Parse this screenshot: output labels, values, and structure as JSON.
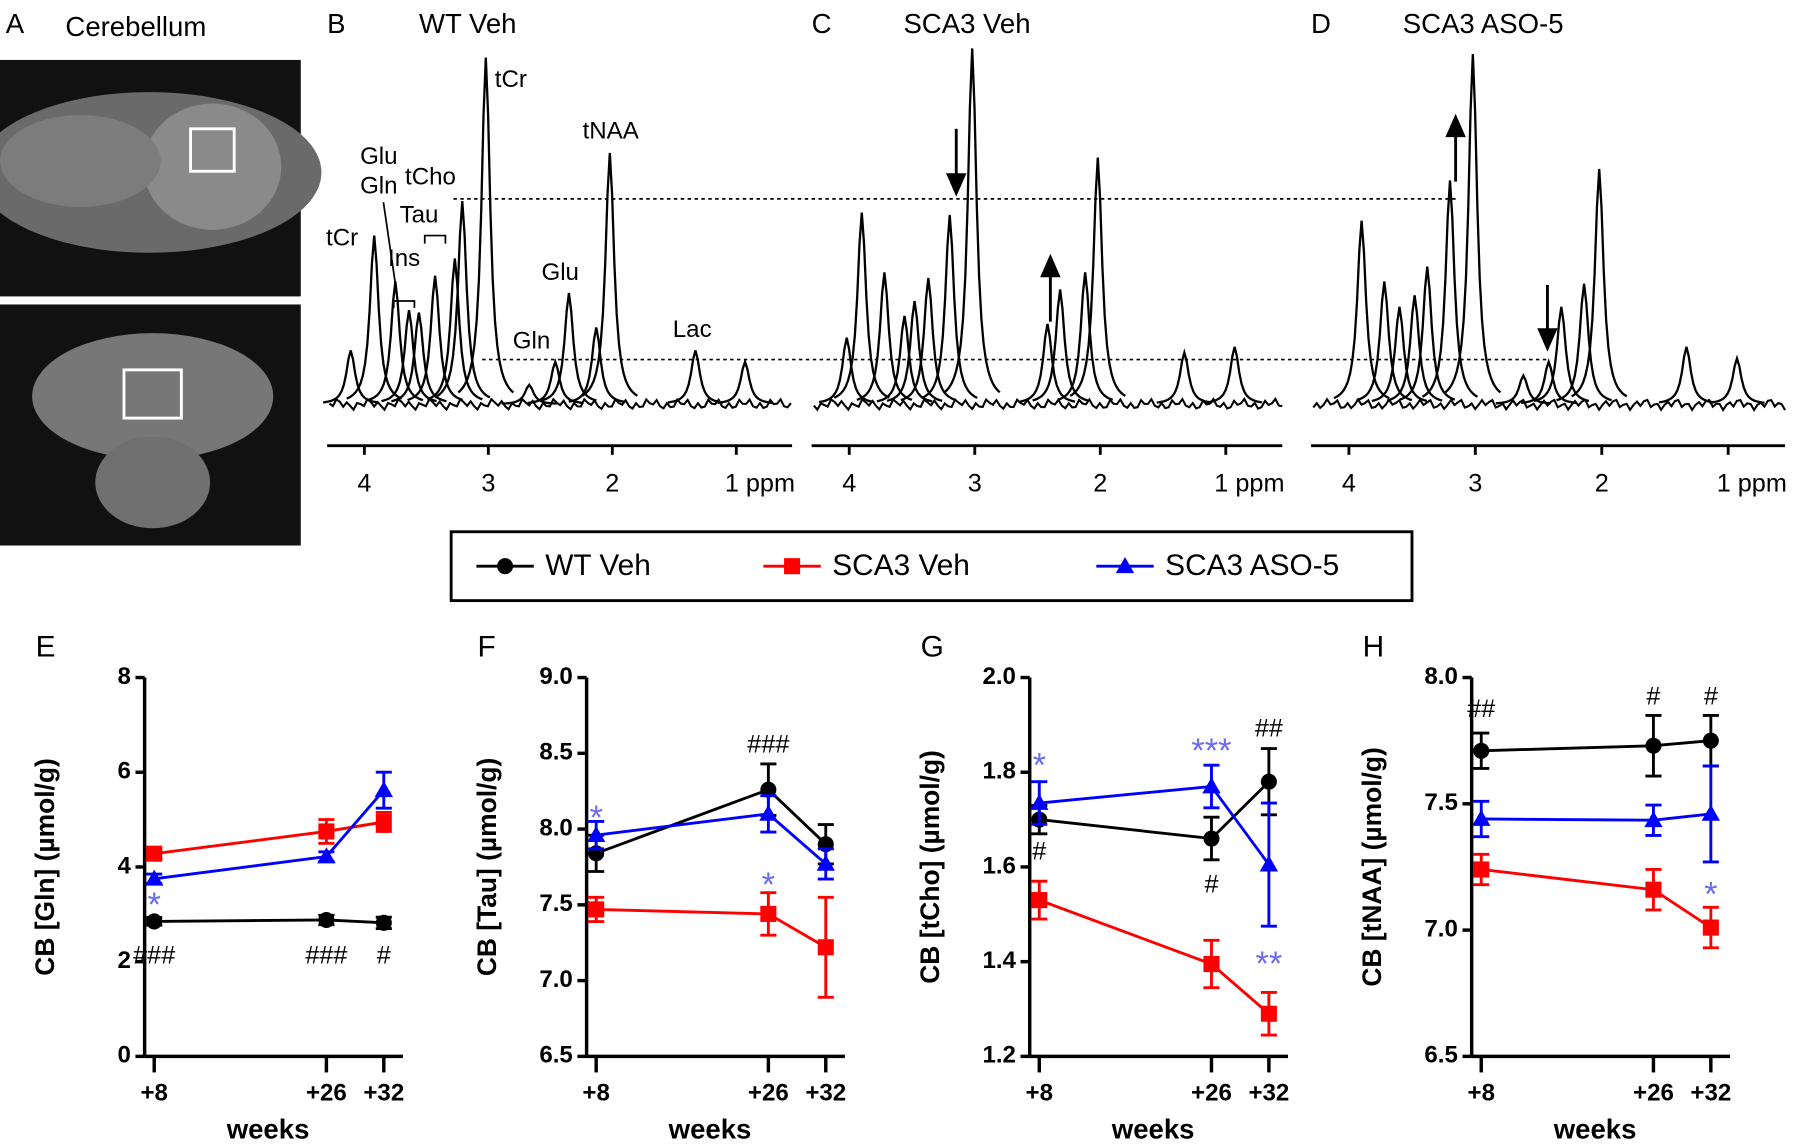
{
  "image_panel": {
    "label": "A",
    "title": "Cerebellum"
  },
  "chart_data": [
    {
      "type": "spectrum",
      "label": "B",
      "title": "WT Veh",
      "color": "#000000",
      "x": [
        4.11,
        3.92,
        3.75,
        3.64,
        3.56,
        3.43,
        3.27,
        3.21,
        3.02,
        2.67,
        2.46,
        2.35,
        2.13,
        2.02,
        1.33,
        0.93
      ],
      "values": [
        4.7,
        14.7,
        10.7,
        8.2,
        8.0,
        11.2,
        12.7,
        17.7,
        30.2,
        1.7,
        3.7,
        9.7,
        6.7,
        21.9,
        4.7,
        3.7
      ],
      "xlim": [
        4.3,
        0.55
      ],
      "xticks": [
        4,
        3,
        2,
        {
          "value": 1,
          "label": "1 ppm"
        }
      ],
      "annotations": [
        "tCr",
        "tNAA",
        "Glu",
        "Gln",
        "tCho",
        "Tau",
        "Ins",
        "Glu",
        "Gln",
        "Lac",
        "tCr"
      ]
    },
    {
      "type": "spectrum",
      "label": "C",
      "title": "SCA3 Veh",
      "color": "#000000",
      "x": [
        4.02,
        3.9,
        3.72,
        3.56,
        3.48,
        3.37,
        3.2,
        3.02,
        2.42,
        2.32,
        2.12,
        2.02,
        1.33,
        0.93
      ],
      "values": [
        5.8,
        16.7,
        11.5,
        7.7,
        9.0,
        11.0,
        16.5,
        31.0,
        7.0,
        10.0,
        11.5,
        21.5,
        4.5,
        5.0
      ],
      "xlim": [
        4.3,
        0.55
      ],
      "xticks": [
        4,
        3,
        2,
        {
          "value": 1,
          "label": "1 ppm"
        }
      ]
    },
    {
      "type": "spectrum",
      "label": "D",
      "title": "SCA3 ASO-5",
      "color": "#000000",
      "x": [
        3.9,
        3.72,
        3.6,
        3.48,
        3.38,
        3.2,
        3.02,
        2.62,
        2.42,
        2.32,
        2.14,
        2.02,
        1.33,
        0.93
      ],
      "values": [
        16.0,
        10.7,
        8.5,
        9.5,
        12.0,
        19.5,
        30.5,
        2.5,
        3.7,
        8.5,
        10.5,
        20.5,
        5.0,
        4.0
      ],
      "xlim": [
        4.3,
        0.55
      ],
      "xticks": [
        4,
        3,
        2,
        {
          "value": 1,
          "label": "1 ppm"
        }
      ]
    },
    {
      "type": "line",
      "label": "E",
      "ylabel": "CB [Gln] (µmol/g)",
      "xlabel": "weeks",
      "x": [
        8,
        26,
        32
      ],
      "xlim": [
        7,
        34
      ],
      "xticks": [
        {
          "value": 8,
          "label": "+8"
        },
        {
          "value": 26,
          "label": "+26"
        },
        {
          "value": 32,
          "label": "+32"
        }
      ],
      "ylim": [
        0,
        8
      ],
      "yticks": [
        0,
        2,
        4,
        6,
        8
      ],
      "series": [
        {
          "name": "WT Veh",
          "color": "#000000",
          "marker": "circle",
          "values": [
            2.85,
            2.88,
            2.82
          ],
          "errors": [
            0.08,
            0.1,
            0.12
          ]
        },
        {
          "name": "SCA3 Veh",
          "color": "#ff0000",
          "marker": "square",
          "values": [
            4.28,
            4.75,
            4.95
          ],
          "errors": [
            0.1,
            0.25,
            0.2
          ]
        },
        {
          "name": "SCA3 ASO-5",
          "color": "#0000ff",
          "marker": "triangle",
          "values": [
            3.75,
            4.22,
            5.62
          ],
          "errors": [
            0.1,
            0.1,
            0.38
          ]
        }
      ],
      "annotations": [
        {
          "text": "*",
          "color": "#6b6bef"
        },
        {
          "text": "###",
          "color": "#000000"
        },
        {
          "text": "###",
          "color": "#000000"
        },
        {
          "text": "#",
          "color": "#000000"
        }
      ]
    },
    {
      "type": "line",
      "label": "F",
      "ylabel": "CB [Tau] (µmol/g)",
      "xlabel": "weeks",
      "x": [
        8,
        26,
        32
      ],
      "xlim": [
        7,
        34
      ],
      "xticks": [
        {
          "value": 8,
          "label": "+8"
        },
        {
          "value": 26,
          "label": "+26"
        },
        {
          "value": 32,
          "label": "+32"
        }
      ],
      "ylim": [
        6.5,
        9
      ],
      "yticks": [
        6.5,
        {
          "value": 7,
          "label": "7.0"
        },
        7.5,
        {
          "value": 8,
          "label": "8.0"
        },
        8.5,
        {
          "value": 9,
          "label": "9.0"
        }
      ],
      "series": [
        {
          "name": "WT Veh",
          "color": "#000000",
          "marker": "circle",
          "values": [
            7.84,
            8.26,
            7.9
          ],
          "errors": [
            0.12,
            0.17,
            0.13
          ]
        },
        {
          "name": "SCA3 Veh",
          "color": "#ff0000",
          "marker": "square",
          "values": [
            7.47,
            7.44,
            7.22
          ],
          "errors": [
            0.08,
            0.14,
            0.33
          ]
        },
        {
          "name": "SCA3 ASO-5",
          "color": "#0000ff",
          "marker": "triangle",
          "values": [
            7.96,
            8.1,
            7.77
          ],
          "errors": [
            0.09,
            0.12,
            0.1
          ]
        }
      ],
      "annotations": [
        {
          "text": "*",
          "color": "#6b6bef"
        },
        {
          "text": "###",
          "color": "#000000"
        },
        {
          "text": "*",
          "color": "#6b6bef"
        }
      ]
    },
    {
      "type": "line",
      "label": "G",
      "ylabel": "CB [tCho] (µmol/g)",
      "xlabel": "weeks",
      "x": [
        8,
        26,
        32
      ],
      "xlim": [
        7,
        34
      ],
      "xticks": [
        {
          "value": 8,
          "label": "+8"
        },
        {
          "value": 26,
          "label": "+26"
        },
        {
          "value": 32,
          "label": "+32"
        }
      ],
      "ylim": [
        1.2,
        2
      ],
      "yticks": [
        1.2,
        1.4,
        1.6,
        1.8,
        {
          "value": 2,
          "label": "2.0"
        }
      ],
      "series": [
        {
          "name": "WT Veh",
          "color": "#000000",
          "marker": "circle",
          "values": [
            1.7,
            1.66,
            1.78
          ],
          "errors": [
            0.03,
            0.045,
            0.07
          ]
        },
        {
          "name": "SCA3 Veh",
          "color": "#ff0000",
          "marker": "square",
          "values": [
            1.53,
            1.395,
            1.29
          ],
          "errors": [
            0.04,
            0.05,
            0.045
          ]
        },
        {
          "name": "SCA3 ASO-5",
          "color": "#0000ff",
          "marker": "triangle",
          "values": [
            1.735,
            1.77,
            1.605
          ],
          "errors": [
            0.045,
            0.045,
            0.13
          ]
        }
      ],
      "annotations": [
        {
          "text": "*",
          "color": "#6b6bef"
        },
        {
          "text": "#",
          "color": "#000000"
        },
        {
          "text": "***",
          "color": "#6b6bef"
        },
        {
          "text": "#",
          "color": "#000000"
        },
        {
          "text": "##",
          "color": "#000000"
        },
        {
          "text": "**",
          "color": "#6b6bef"
        }
      ]
    },
    {
      "type": "line",
      "label": "H",
      "ylabel": "CB [tNAA] (µmol/g)",
      "xlabel": "weeks",
      "x": [
        8,
        26,
        32
      ],
      "xlim": [
        7,
        34
      ],
      "xticks": [
        {
          "value": 8,
          "label": "+8"
        },
        {
          "value": 26,
          "label": "+26"
        },
        {
          "value": 32,
          "label": "+32"
        }
      ],
      "ylim": [
        6.5,
        8
      ],
      "yticks": [
        6.5,
        {
          "value": 7,
          "label": "7.0"
        },
        7.5,
        {
          "value": 8,
          "label": "8.0"
        }
      ],
      "series": [
        {
          "name": "WT Veh",
          "color": "#000000",
          "marker": "circle",
          "values": [
            7.71,
            7.73,
            7.75
          ],
          "errors": [
            0.07,
            0.12,
            0.1
          ]
        },
        {
          "name": "SCA3 Veh",
          "color": "#ff0000",
          "marker": "square",
          "values": [
            7.24,
            7.16,
            7.01
          ],
          "errors": [
            0.06,
            0.08,
            0.08
          ]
        },
        {
          "name": "SCA3 ASO-5",
          "color": "#0000ff",
          "marker": "triangle",
          "values": [
            7.44,
            7.435,
            7.46
          ],
          "errors": [
            0.07,
            0.06,
            0.19
          ]
        }
      ],
      "annotations": [
        {
          "text": "##",
          "color": "#000000"
        },
        {
          "text": "#",
          "color": "#000000"
        },
        {
          "text": "#",
          "color": "#000000"
        },
        {
          "text": "*",
          "color": "#6b6bef"
        }
      ]
    }
  ]
}
